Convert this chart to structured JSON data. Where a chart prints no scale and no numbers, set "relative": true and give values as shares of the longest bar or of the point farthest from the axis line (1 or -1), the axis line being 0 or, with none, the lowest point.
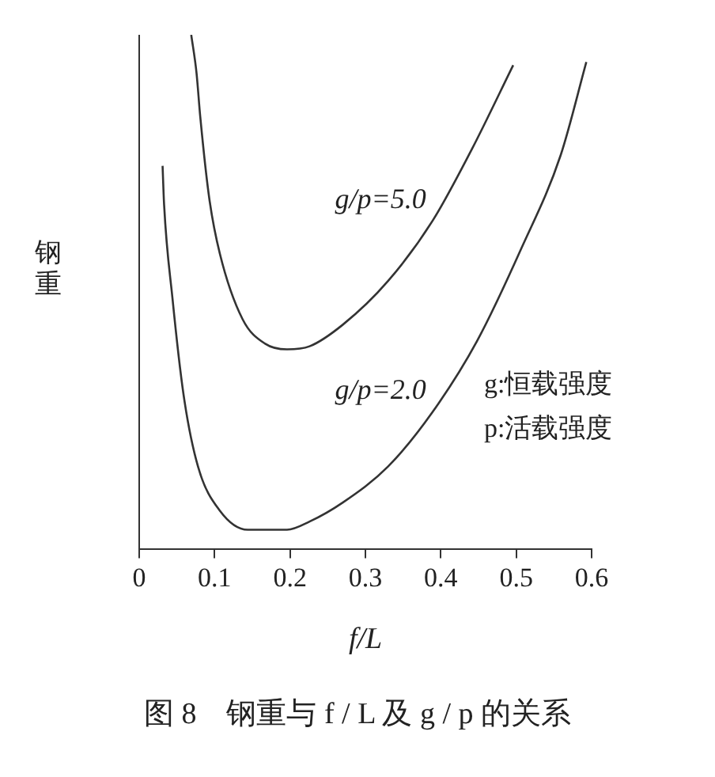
{
  "chart_data": {
    "type": "line",
    "title": "图 8　钢重与 f / L 及 g / p 的关系",
    "xlabel": "f/L",
    "ylabel": "钢重",
    "relative": true,
    "xlim": [
      0,
      0.6
    ],
    "xticks": [
      0,
      0.1,
      0.2,
      0.3,
      0.4,
      0.5,
      0.6
    ],
    "grid": false,
    "legend": false,
    "marker": "none",
    "line_style": "solid",
    "series": [
      {
        "name": "g/p=5.0",
        "color": "#333333",
        "x": [
          0.069,
          0.076,
          0.081,
          0.093,
          0.107,
          0.137,
          0.167,
          0.196,
          0.226,
          0.27,
          0.33,
          0.389,
          0.441,
          0.496
        ],
        "values": [
          1.0,
          0.926,
          0.84,
          0.681,
          0.574,
          0.447,
          0.399,
          0.388,
          0.394,
          0.436,
          0.521,
          0.638,
          0.777,
          0.941
        ]
      },
      {
        "name": "g/p=2.0",
        "color": "#333333",
        "x": [
          0.031,
          0.033,
          0.044,
          0.059,
          0.078,
          0.107,
          0.144,
          0.196,
          0.226,
          0.27,
          0.33,
          0.389,
          0.448,
          0.507,
          0.559,
          0.593
        ],
        "values": [
          0.745,
          0.67,
          0.489,
          0.298,
          0.16,
          0.074,
          0.037,
          0.037,
          0.053,
          0.09,
          0.16,
          0.266,
          0.404,
          0.585,
          0.766,
          0.947
        ]
      }
    ],
    "annotations": [
      "g:恒载强度",
      "p:活载强度"
    ]
  }
}
